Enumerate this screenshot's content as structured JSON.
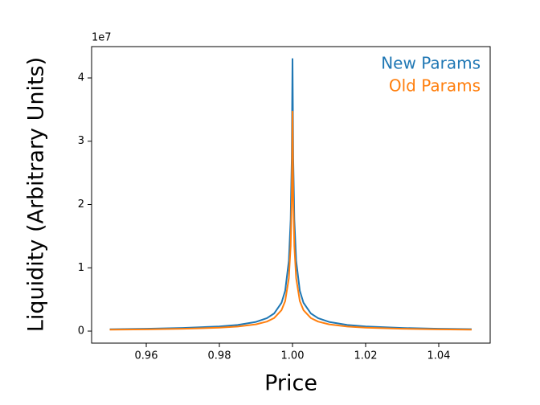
{
  "chart_data": {
    "type": "line",
    "x_label": "Price",
    "y_label": "Liquidity (Arbitrary Units)",
    "y_offset_label": "1e7",
    "x": [
      0.95,
      0.96,
      0.97,
      0.98,
      0.985,
      0.99,
      0.993,
      0.995,
      0.997,
      0.998,
      0.999,
      0.9995,
      0.9998,
      1.0,
      1.0002,
      1.0005,
      1.001,
      1.002,
      1.003,
      1.005,
      1.007,
      1.01,
      1.015,
      1.02,
      1.03,
      1.04,
      1.049
    ],
    "series": [
      {
        "name": "New Params",
        "color": "#1f77b4",
        "values": [
          0.0298,
          0.0372,
          0.0494,
          0.0737,
          0.0977,
          0.145,
          0.204,
          0.28,
          0.448,
          0.638,
          1.111,
          1.765,
          2.727,
          4.3,
          2.727,
          1.765,
          1.111,
          0.638,
          0.448,
          0.28,
          0.204,
          0.145,
          0.0977,
          0.0737,
          0.0494,
          0.0372,
          0.0304
        ]
      },
      {
        "name": "Old Params",
        "color": "#ff7f0e",
        "values": [
          0.0219,
          0.0273,
          0.0363,
          0.0541,
          0.0717,
          0.1066,
          0.1503,
          0.2069,
          0.3316,
          0.4747,
          0.8352,
          1.346,
          2.128,
          3.47,
          2.128,
          1.346,
          0.8352,
          0.4747,
          0.3316,
          0.2069,
          0.1503,
          0.1066,
          0.0717,
          0.0541,
          0.0363,
          0.0273,
          0.0223
        ]
      }
    ],
    "xlim": [
      0.94505,
      1.05407
    ],
    "xticks": [
      0.96,
      0.98,
      {
        "value": 1.0,
        "label": "1.00"
      },
      1.02,
      1.04
    ],
    "ylim": [
      -0.19,
      4.495
    ],
    "yticks": [
      0,
      1,
      2,
      3,
      4
    ],
    "legend": "upper right"
  }
}
